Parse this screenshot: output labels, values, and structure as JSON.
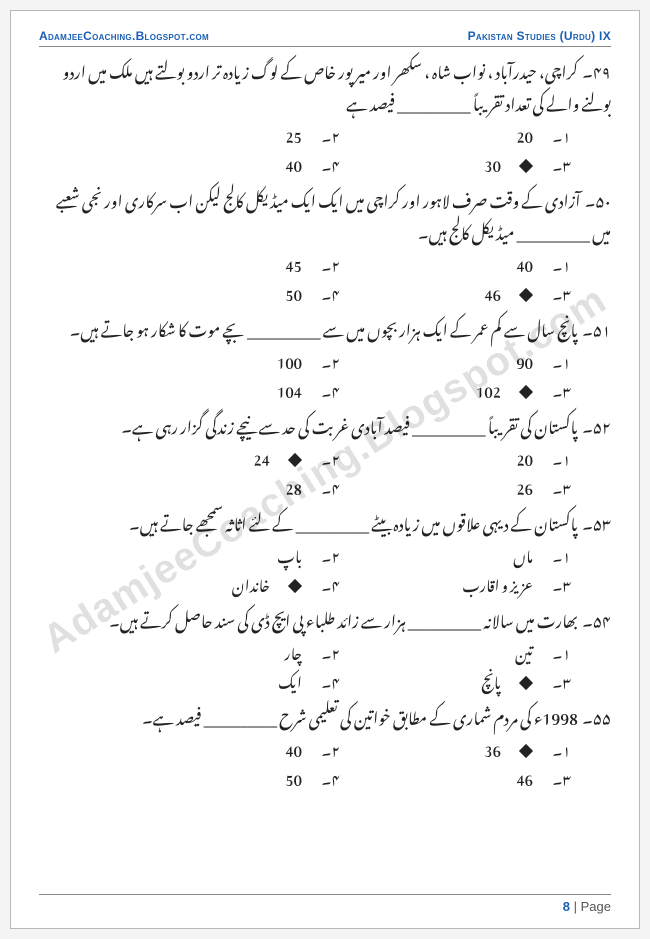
{
  "header": {
    "left": "AdamjeeCoaching.Blogspot.com",
    "right": "Pakistan Studies (Urdu) IX"
  },
  "watermark": "AdamjeeCoaching.Blogspot.com",
  "footer": {
    "page": "8",
    "sep": " | ",
    "word": "Page"
  },
  "labels": {
    "a": "۱۔",
    "b": "۲۔",
    "c": "۳۔",
    "d": "۴۔"
  },
  "questions": [
    {
      "num": "۴۹۔",
      "text": "کراچی، حیدرآباد ، نواب شاہ ، سکھر اور میرپور خاص کے لوگ زیادہ تر اردو بولتے ہیں ملک میں اردو بولنے والے کی تعداد تقریباً __________ فیصد ہے",
      "opts": {
        "a": "20",
        "b": "25",
        "c": "30",
        "d": "40"
      },
      "correct": "c"
    },
    {
      "num": "۵۰۔",
      "text": "آزادی کے وقت صرف لاہور اور کراچی میں ایک ایک میڈیکل کالج لیکن اب سرکاری اور نجی شعبے میں __________ میڈیکل کالج ہیں۔",
      "opts": {
        "a": "40",
        "b": "45",
        "c": "46",
        "d": "50"
      },
      "correct": "c"
    },
    {
      "num": "۵۱۔",
      "text": "پانچ سال سے کم عمر کے ایک ہزار بچوں میں سے __________ بچے موت کا شکار ہو جاتے ہیں۔",
      "opts": {
        "a": "90",
        "b": "100",
        "c": "102",
        "d": "104"
      },
      "correct": "c"
    },
    {
      "num": "۵۲۔",
      "text": "پاکستان کی تقریباً __________ فیصد آبادی غربت کی حد سے نیچے زندگی گزار رہی ہے۔",
      "opts": {
        "a": "20",
        "b": "24",
        "c": "26",
        "d": "28"
      },
      "correct": "b"
    },
    {
      "num": "۵۳۔",
      "text": "پاکستان کے دیہی علاقوں میں زیادہ بیٹے __________ کے لئے اثاثہ سمجھے جاتے ہیں۔",
      "opts": {
        "a": "ماں",
        "b": "باپ",
        "c": "عزیز و اقارب",
        "d": "خاندان"
      },
      "correct": "d"
    },
    {
      "num": "۵۴۔",
      "text": "بھارت میں سالانہ __________ ہزار سے زائد طلباء پی ایچ ڈی کی سند حاصل کرتے ہیں۔",
      "opts": {
        "a": "تین",
        "b": "چار",
        "c": "پانچ",
        "d": "ایک"
      },
      "correct": "c"
    },
    {
      "num": "۵۵۔",
      "text": "1998ء کی مردم شماری کے مطابق خواتین کی تعلیمی شرح __________ فیصد ہے۔",
      "opts": {
        "a": "36",
        "b": "40",
        "c": "46",
        "d": "50"
      },
      "correct": "a"
    }
  ]
}
